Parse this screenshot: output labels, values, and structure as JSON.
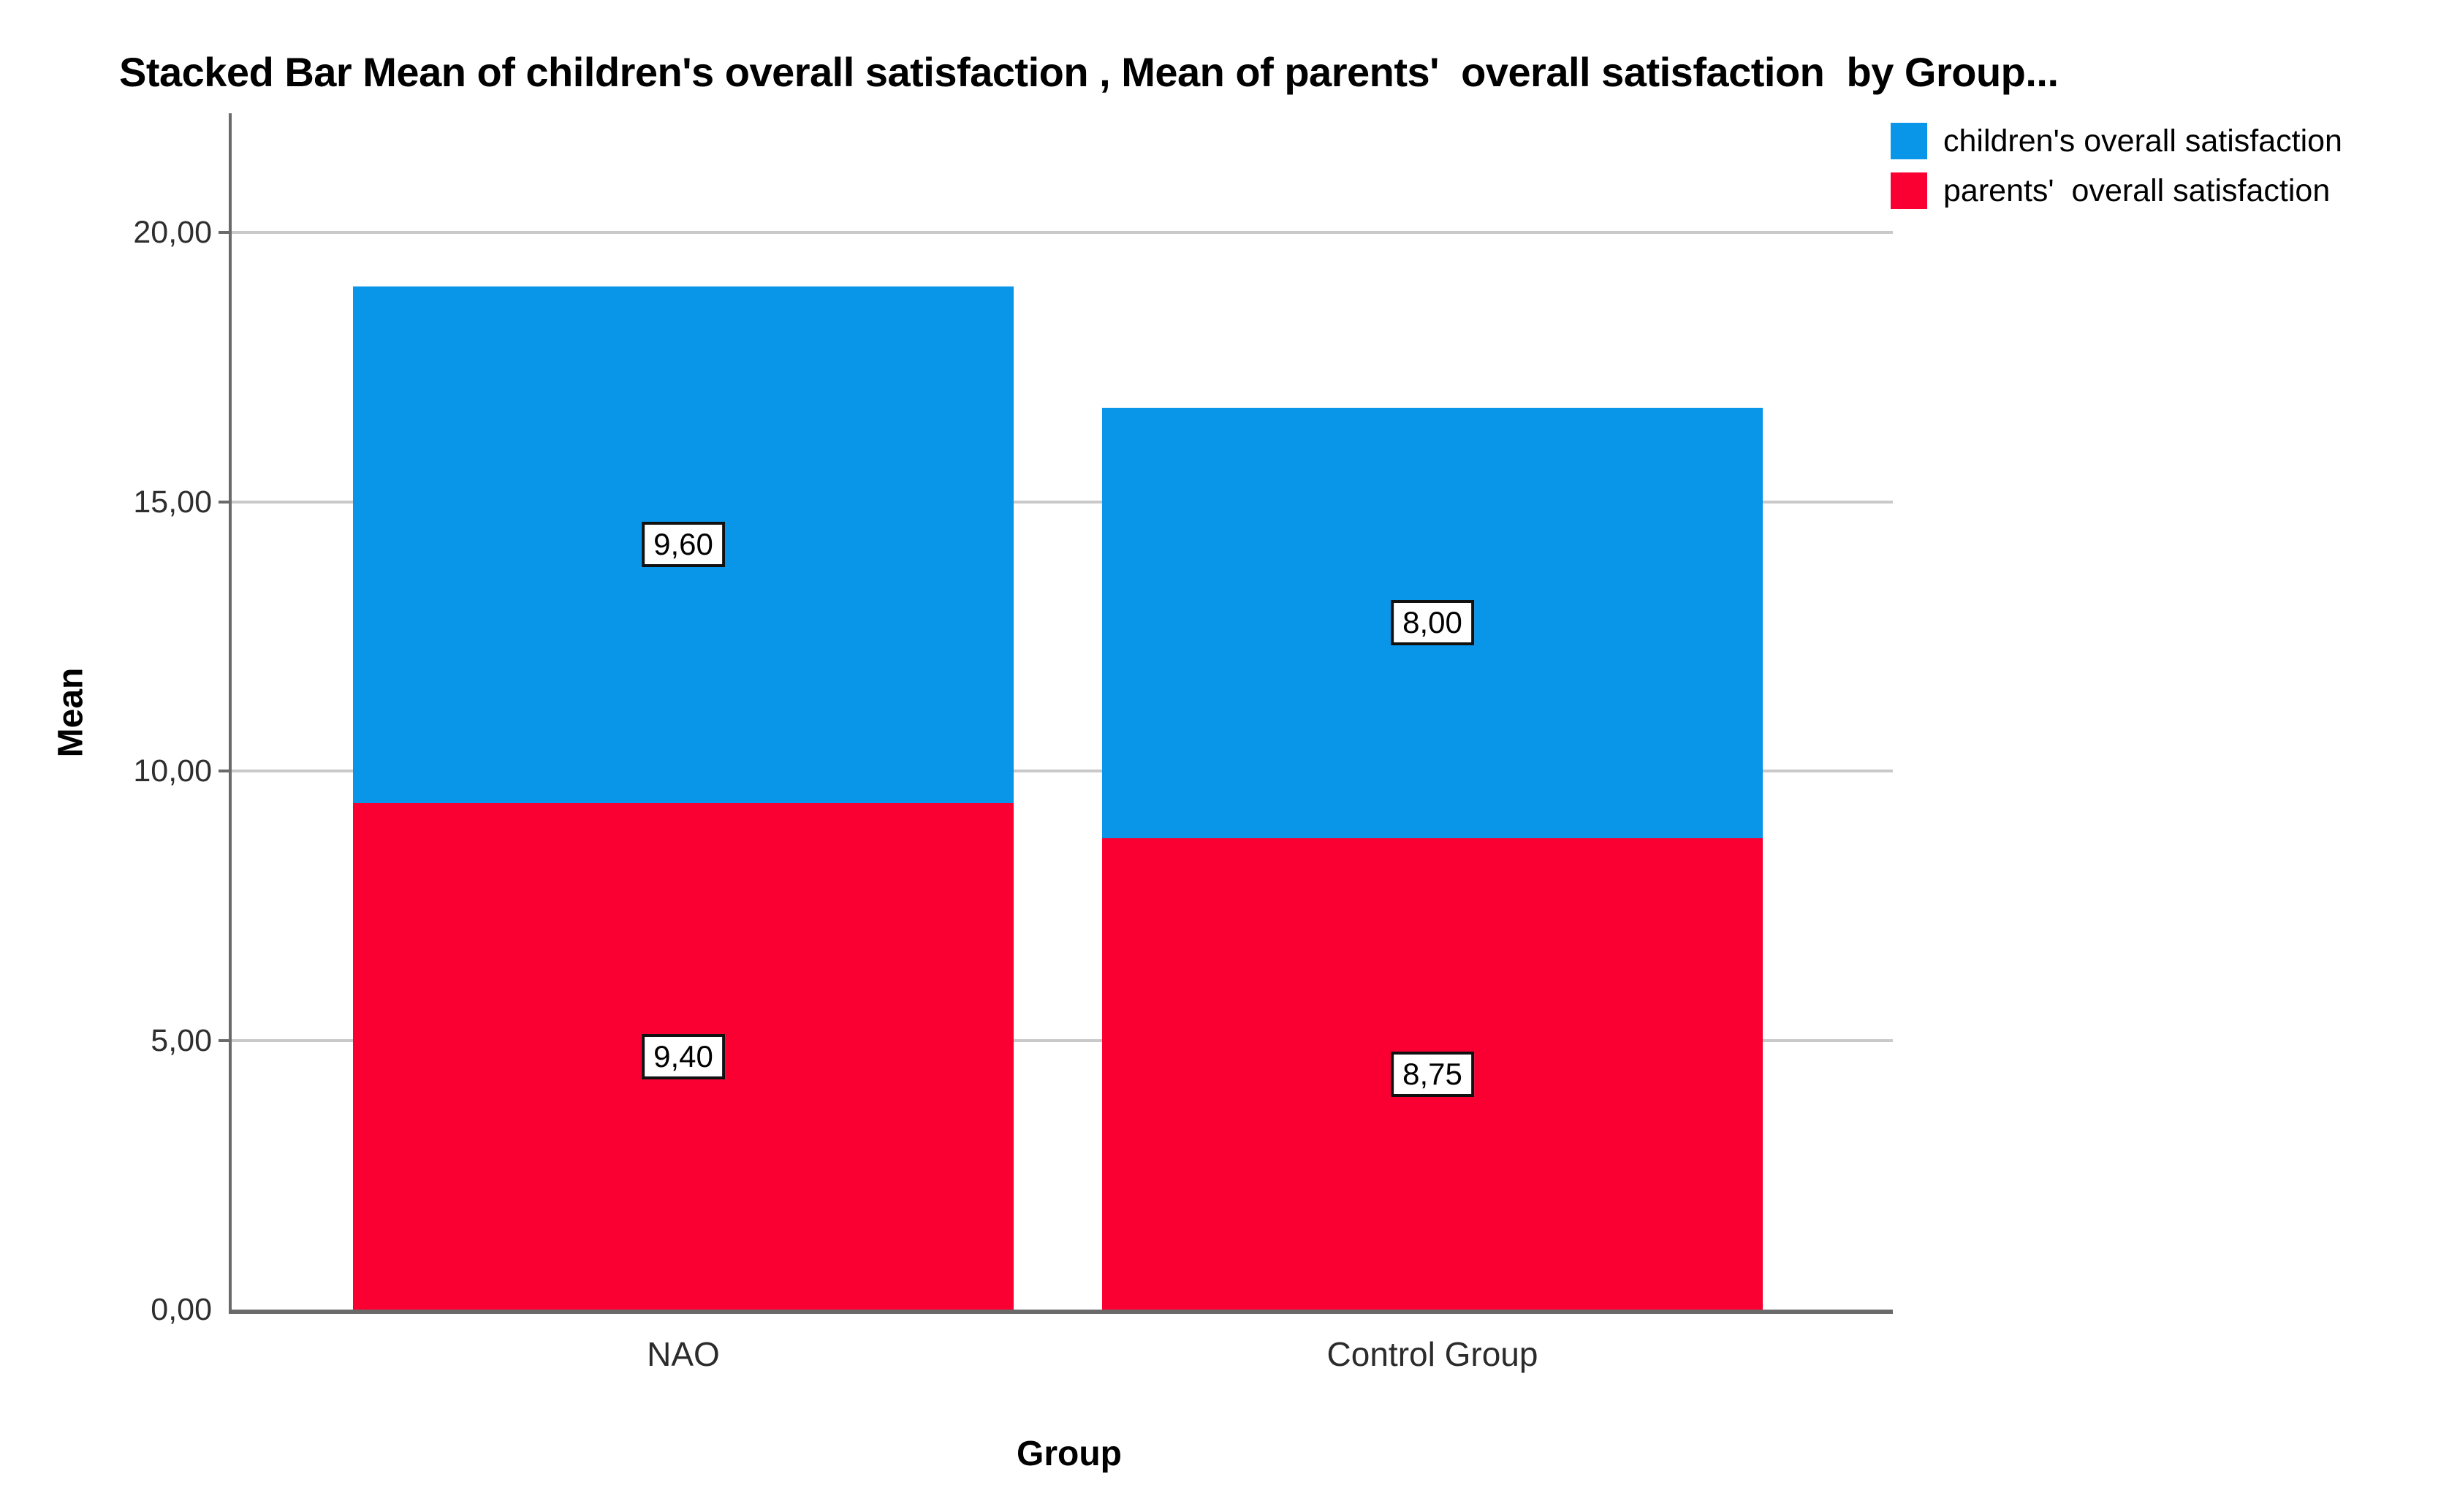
{
  "title": "Stacked Bar Mean of children's overall satisfaction , Mean of parents'  overall satisfaction  by Group...",
  "chart_data": {
    "type": "bar",
    "subtype": "stacked",
    "categories": [
      "NAO",
      "Control Group"
    ],
    "series": [
      {
        "name": "parents'  overall satisfaction",
        "color": "#FA0032",
        "values": [
          9.4,
          8.75
        ],
        "data_labels": [
          "9,40",
          "8,75"
        ]
      },
      {
        "name": "children's overall satisfaction",
        "color": "#0995E8",
        "values": [
          9.6,
          8.0
        ],
        "data_labels": [
          "9,60",
          "8,00"
        ]
      }
    ],
    "totals": [
      19.0,
      16.75
    ],
    "title": "Stacked Bar Mean of children's overall satisfaction , Mean of parents'  overall satisfaction  by Group...",
    "xlabel": "Group",
    "ylabel": "Mean",
    "yticks": [
      {
        "value": 0,
        "label": "0,00"
      },
      {
        "value": 5,
        "label": "5,00"
      },
      {
        "value": 10,
        "label": "10,00"
      },
      {
        "value": 15,
        "label": "15,00"
      },
      {
        "value": 20,
        "label": "20,00"
      }
    ],
    "ylim": [
      0,
      22.2
    ],
    "grid": "horizontal",
    "legend_position": "top-right",
    "decimal_separator": ","
  },
  "legend": {
    "items": [
      {
        "label": "children's overall satisfaction",
        "color": "#0995E8"
      },
      {
        "label": "parents'  overall satisfaction",
        "color": "#FA0032"
      }
    ]
  },
  "colors": {
    "children_series": "#0995E8",
    "parents_series": "#FA0032",
    "gridline": "#C9C9C9",
    "axis": "#6A6A6A",
    "label_box_border": "#111111",
    "label_box_fill": "#ffffff",
    "text": "#000000"
  }
}
